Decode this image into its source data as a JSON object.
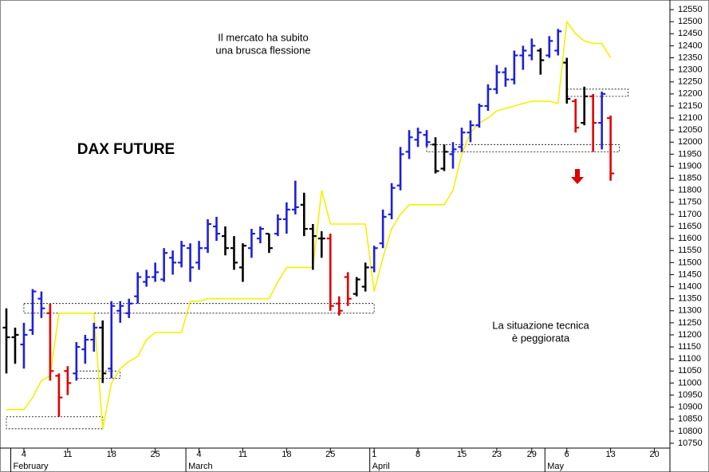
{
  "chart_data": {
    "type": "ohlc",
    "title": "DAX FUTURE",
    "annotations": [
      {
        "lines": [
          "Il mercato ha subito",
          "una brusca flessione"
        ],
        "color": "#e00000"
      },
      {
        "lines": [
          "La situazione tecnica",
          "è peggiorata"
        ],
        "color": "#e00000"
      }
    ],
    "categories": [
      null,
      null,
      "4",
      null,
      null,
      null,
      null,
      "11",
      null,
      null,
      null,
      null,
      "18",
      null,
      null,
      null,
      null,
      "25",
      null,
      null,
      null,
      null,
      "4",
      null,
      null,
      null,
      null,
      "11",
      null,
      null,
      null,
      null,
      "18",
      null,
      null,
      null,
      null,
      "25",
      null,
      null,
      null,
      null,
      "1",
      null,
      null,
      null,
      null,
      "8",
      null,
      null,
      null,
      null,
      "15",
      null,
      null,
      null,
      "23",
      null,
      null,
      null,
      "29",
      null,
      null,
      null,
      "6",
      null,
      null,
      null,
      null,
      "13",
      null,
      null,
      null,
      null,
      "20",
      null
    ],
    "month_labels": [
      null,
      "February",
      null,
      null,
      null,
      null,
      null,
      null,
      null,
      null,
      null,
      null,
      null,
      null,
      null,
      null,
      null,
      null,
      null,
      null,
      null,
      "March",
      null,
      null,
      null,
      null,
      null,
      null,
      null,
      null,
      null,
      null,
      null,
      null,
      null,
      null,
      null,
      null,
      null,
      null,
      null,
      null,
      "April",
      null,
      null,
      null,
      null,
      null,
      null,
      null,
      null,
      null,
      null,
      null,
      null,
      null,
      null,
      null,
      null,
      null,
      null,
      null,
      "May",
      null,
      null,
      null,
      null,
      null,
      null,
      null,
      null,
      null,
      null,
      null,
      null,
      null
    ],
    "open": [
      11230,
      11190,
      11160,
      11220,
      11350,
      11290,
      11030,
      11050,
      11040,
      11140,
      11180,
      11230,
      11060,
      11300,
      11290,
      11360,
      11420,
      11440,
      11430,
      11520,
      11500,
      11560,
      11500,
      11560,
      11650,
      11610,
      11560,
      11480,
      11560,
      11600,
      11620,
      11620,
      11680,
      11720,
      11740,
      11640,
      11600,
      11600,
      11330,
      11440,
      11370,
      11400,
      11480,
      11580,
      11700,
      11820,
      11960,
      12010,
      12030,
      11990,
      11890,
      11950,
      11980,
      12040,
      12070,
      12150,
      12220,
      12290,
      12260,
      12360,
      12360,
      12380,
      12360,
      12380,
      12330,
      12170,
      12080,
      12190,
      12080,
      12100,
      null,
      null,
      null,
      null,
      null,
      null
    ],
    "high": [
      11310,
      11230,
      11250,
      11390,
      11380,
      11330,
      11040,
      11070,
      11170,
      11200,
      11250,
      11260,
      11340,
      11340,
      11350,
      11460,
      11470,
      11500,
      11560,
      11550,
      11590,
      11580,
      11590,
      11680,
      11690,
      11650,
      11610,
      11580,
      11640,
      11650,
      11620,
      11700,
      11750,
      11840,
      11790,
      11660,
      11630,
      11620,
      11360,
      11460,
      11440,
      11500,
      11570,
      11720,
      11830,
      11980,
      12050,
      12060,
      12050,
      12020,
      11990,
      12000,
      12060,
      12090,
      12160,
      12240,
      12320,
      12310,
      12380,
      12400,
      12430,
      12390,
      12440,
      12470,
      12350,
      12180,
      12230,
      12200,
      12210,
      12110,
      null,
      null,
      null,
      null,
      null,
      null
    ],
    "low": [
      11040,
      11080,
      11060,
      11200,
      11270,
      11010,
      10860,
      10950,
      11010,
      11080,
      11130,
      11000,
      11020,
      11250,
      11270,
      11330,
      11400,
      11420,
      11420,
      11450,
      11480,
      11420,
      11470,
      11540,
      11590,
      11530,
      11470,
      11420,
      11520,
      11580,
      11540,
      11610,
      11620,
      11700,
      11610,
      11470,
      11520,
      11300,
      11280,
      11320,
      11360,
      11380,
      11460,
      11560,
      11680,
      11800,
      11930,
      11980,
      11980,
      11870,
      11880,
      11890,
      11960,
      12000,
      12060,
      12130,
      12200,
      12230,
      12240,
      12300,
      12340,
      12280,
      12350,
      12360,
      12160,
      12040,
      12070,
      11960,
      11970,
      11840,
      null,
      null,
      null,
      null,
      null,
      null
    ],
    "close": [
      11190,
      11200,
      11200,
      11380,
      11310,
      11050,
      10940,
      11000,
      11150,
      11180,
      11230,
      11040,
      11320,
      11320,
      11330,
      11440,
      11440,
      11460,
      11540,
      11500,
      11570,
      11480,
      11560,
      11660,
      11620,
      11560,
      11500,
      11570,
      11620,
      11640,
      11560,
      11680,
      11720,
      11730,
      11640,
      11610,
      11600,
      11320,
      11300,
      11350,
      11430,
      11480,
      11560,
      11690,
      11810,
      11950,
      12020,
      12040,
      12000,
      11880,
      11960,
      11970,
      12040,
      12070,
      12150,
      12220,
      12290,
      12260,
      12360,
      12380,
      12400,
      12340,
      12420,
      12460,
      12180,
      12060,
      12190,
      12080,
      12200,
      11870,
      null,
      null,
      null,
      null,
      null,
      null
    ],
    "colors": [
      "#000000",
      "#000000",
      "#1f1fdd",
      "#1f1fdd",
      "#1f1fdd",
      "#e00000",
      "#e00000",
      "#e00000",
      "#1f1fdd",
      "#1f1fdd",
      "#1f1fdd",
      "#000000",
      "#1f1fdd",
      "#1f1fdd",
      "#1f1fdd",
      "#1f1fdd",
      "#1f1fdd",
      "#1f1fdd",
      "#1f1fdd",
      "#1f1fdd",
      "#1f1fdd",
      "#1f1fdd",
      "#1f1fdd",
      "#1f1fdd",
      "#1f1fdd",
      "#000000",
      "#000000",
      "#000000",
      "#1f1fdd",
      "#1f1fdd",
      "#000000",
      "#1f1fdd",
      "#1f1fdd",
      "#1f1fdd",
      "#000000",
      "#000000",
      "#000000",
      "#e00000",
      "#e00000",
      "#e00000",
      "#000000",
      "#000000",
      "#1f1fdd",
      "#1f1fdd",
      "#1f1fdd",
      "#1f1fdd",
      "#1f1fdd",
      "#1f1fdd",
      "#1f1fdd",
      "#000000",
      "#000000",
      "#1f1fdd",
      "#1f1fdd",
      "#1f1fdd",
      "#1f1fdd",
      "#1f1fdd",
      "#1f1fdd",
      "#1f1fdd",
      "#1f1fdd",
      "#1f1fdd",
      "#1f1fdd",
      "#000000",
      "#1f1fdd",
      "#1f1fdd",
      "#000000",
      "#e00000",
      "#000000",
      "#e00000",
      "#1f1fdd",
      "#e00000",
      null,
      null,
      null,
      null,
      null,
      null
    ],
    "overlay": {
      "color": "#f2f200",
      "values": [
        10890,
        10890,
        10890,
        10940,
        11010,
        11030,
        11290,
        11290,
        11290,
        11290,
        11290,
        10810,
        11000,
        11060,
        11090,
        11110,
        11180,
        11210,
        11210,
        11210,
        11210,
        11340,
        11340,
        11350,
        11350,
        11350,
        11350,
        11350,
        11350,
        11350,
        11350,
        11420,
        11480,
        11480,
        11480,
        11480,
        11800,
        11660,
        11660,
        11660,
        11660,
        11660,
        11380,
        11520,
        11640,
        11700,
        11740,
        11740,
        11740,
        11740,
        11740,
        11800,
        11950,
        12040,
        12080,
        12100,
        12130,
        12140,
        12150,
        12160,
        12170,
        12170,
        12170,
        12160,
        12500,
        12450,
        12420,
        12410,
        12410,
        12350,
        null,
        null,
        null,
        null,
        null,
        null
      ]
    },
    "zones": [
      {
        "x0": 2,
        "x1": 42,
        "low": 11290,
        "high": 11330
      },
      {
        "x0": 8,
        "x1": 13,
        "low": 11020,
        "high": 11050
      },
      {
        "x0": 0,
        "x1": 11,
        "low": 10810,
        "high": 10860
      },
      {
        "x0": 48,
        "x1": 70,
        "low": 11960,
        "high": 11990
      },
      {
        "x0": 64,
        "x1": 71,
        "low": 12190,
        "high": 12220
      }
    ],
    "ylim": [
      10730,
      12590
    ],
    "yticks": [
      10750,
      10800,
      10850,
      10900,
      10950,
      11000,
      11050,
      11100,
      11150,
      11200,
      11250,
      11300,
      11350,
      11400,
      11450,
      11500,
      11550,
      11600,
      11650,
      11700,
      11750,
      11800,
      11850,
      11900,
      11950,
      12000,
      12050,
      12100,
      12150,
      12200,
      12250,
      12300,
      12350,
      12400,
      12450,
      12500,
      12550
    ]
  }
}
